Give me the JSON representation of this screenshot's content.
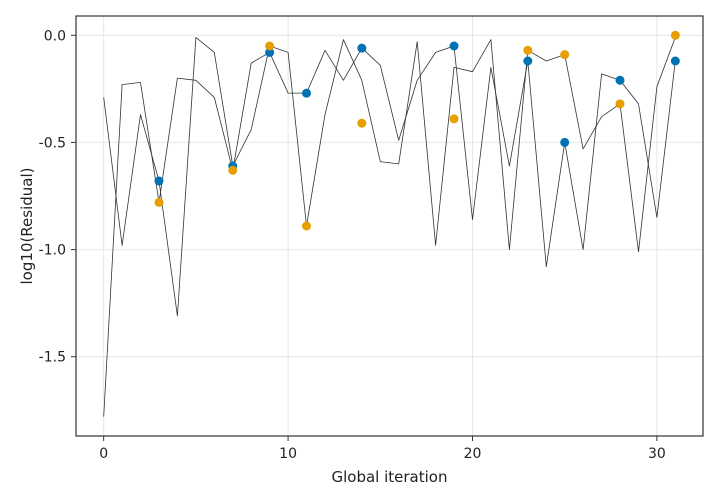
{
  "chart_data": {
    "type": "line",
    "title": "",
    "xlabel": "Global iteration",
    "ylabel": "log10(Residual)",
    "xlim": [
      -1.5,
      32.5
    ],
    "ylim": [
      -1.87,
      0.09
    ],
    "xticks": [
      0,
      10,
      20,
      30
    ],
    "xtick_labels": [
      "0",
      "10",
      "20",
      "30"
    ],
    "yticks": [
      0.0,
      -0.5,
      -1.0,
      -1.5
    ],
    "ytick_labels": [
      "0.0",
      "-0.5",
      "-1.0",
      "-1.5"
    ],
    "grid": true,
    "legend": "none",
    "lines": [
      {
        "color": "#333333",
        "x": [
          0,
          1,
          2,
          3,
          4,
          5,
          6,
          7,
          8,
          9,
          10,
          11,
          12,
          13,
          14,
          15,
          16,
          17,
          18,
          19,
          20,
          21,
          22,
          23,
          24,
          25,
          26,
          27,
          28,
          29,
          30,
          31
        ],
        "values": [
          -0.29,
          -0.98,
          -0.37,
          -0.68,
          -1.31,
          -0.01,
          -0.08,
          -0.61,
          -0.44,
          -0.05,
          -0.08,
          -0.89,
          -0.37,
          -0.02,
          -0.21,
          -0.59,
          -0.6,
          -0.03,
          -0.98,
          -0.15,
          -0.17,
          -0.02,
          -1.0,
          -0.07,
          -0.12,
          -0.09,
          -0.53,
          -0.38,
          -0.32,
          -1.01,
          -0.24,
          -0.01
        ]
      },
      {
        "color": "#333333",
        "x": [
          0,
          1,
          2,
          3,
          4,
          5,
          6,
          7,
          8,
          9,
          10,
          11,
          12,
          13,
          14,
          15,
          16,
          17,
          18,
          19,
          20,
          21,
          22,
          23,
          24,
          25,
          26,
          27,
          28,
          29,
          30,
          31
        ],
        "values": [
          -1.78,
          -0.23,
          -0.22,
          -0.78,
          -0.2,
          -0.21,
          -0.29,
          -0.63,
          -0.13,
          -0.08,
          -0.27,
          -0.27,
          -0.07,
          -0.21,
          -0.06,
          -0.14,
          -0.49,
          -0.21,
          -0.08,
          -0.05,
          -0.86,
          -0.15,
          -0.61,
          -0.12,
          -1.08,
          -0.5,
          -1.0,
          -0.18,
          -0.21,
          -0.32,
          -0.85,
          -0.12
        ]
      }
    ],
    "scatter": [
      {
        "color": "#0072b2",
        "x": [
          3,
          7,
          9,
          11,
          14,
          19,
          23,
          25,
          28,
          31
        ],
        "values": [
          -0.68,
          -0.61,
          -0.08,
          -0.27,
          -0.06,
          -0.05,
          -0.12,
          -0.5,
          -0.21,
          -0.12
        ]
      },
      {
        "color": "#e69f00",
        "x": [
          3,
          7,
          9,
          11,
          14,
          19,
          23,
          25,
          28,
          31
        ],
        "values": [
          -0.78,
          -0.63,
          -0.05,
          -0.89,
          -0.41,
          -0.39,
          -0.07,
          -0.09,
          -0.32,
          0.0
        ]
      }
    ]
  }
}
